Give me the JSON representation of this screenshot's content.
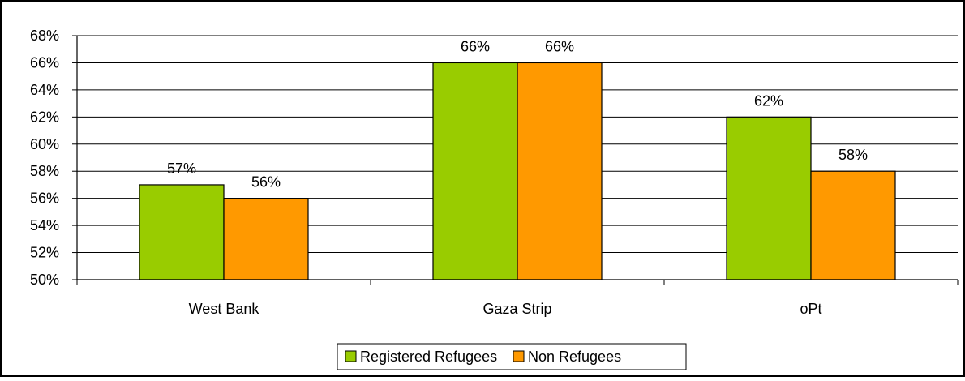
{
  "chart_data": {
    "type": "bar",
    "categories": [
      "West Bank",
      "Gaza Strip",
      "oPt"
    ],
    "series": [
      {
        "name": "Registered Refugees",
        "values": [
          57,
          66,
          62
        ],
        "color": "#99CC00",
        "labels": [
          "57%",
          "66%",
          "62%"
        ]
      },
      {
        "name": "Non Refugees",
        "values": [
          56,
          66,
          58
        ],
        "color": "#FF9900",
        "labels": [
          "56%",
          "66%",
          "58%"
        ]
      }
    ],
    "ylim": [
      50,
      68
    ],
    "ytick_values": [
      50,
      52,
      54,
      56,
      58,
      60,
      62,
      64,
      66,
      68
    ],
    "ytick_labels": [
      "50%",
      "52%",
      "54%",
      "56%",
      "58%",
      "60%",
      "62%",
      "64%",
      "66%",
      "68%"
    ],
    "grid": true,
    "legend_position": "bottom",
    "title": "",
    "xlabel": "",
    "ylabel": ""
  }
}
